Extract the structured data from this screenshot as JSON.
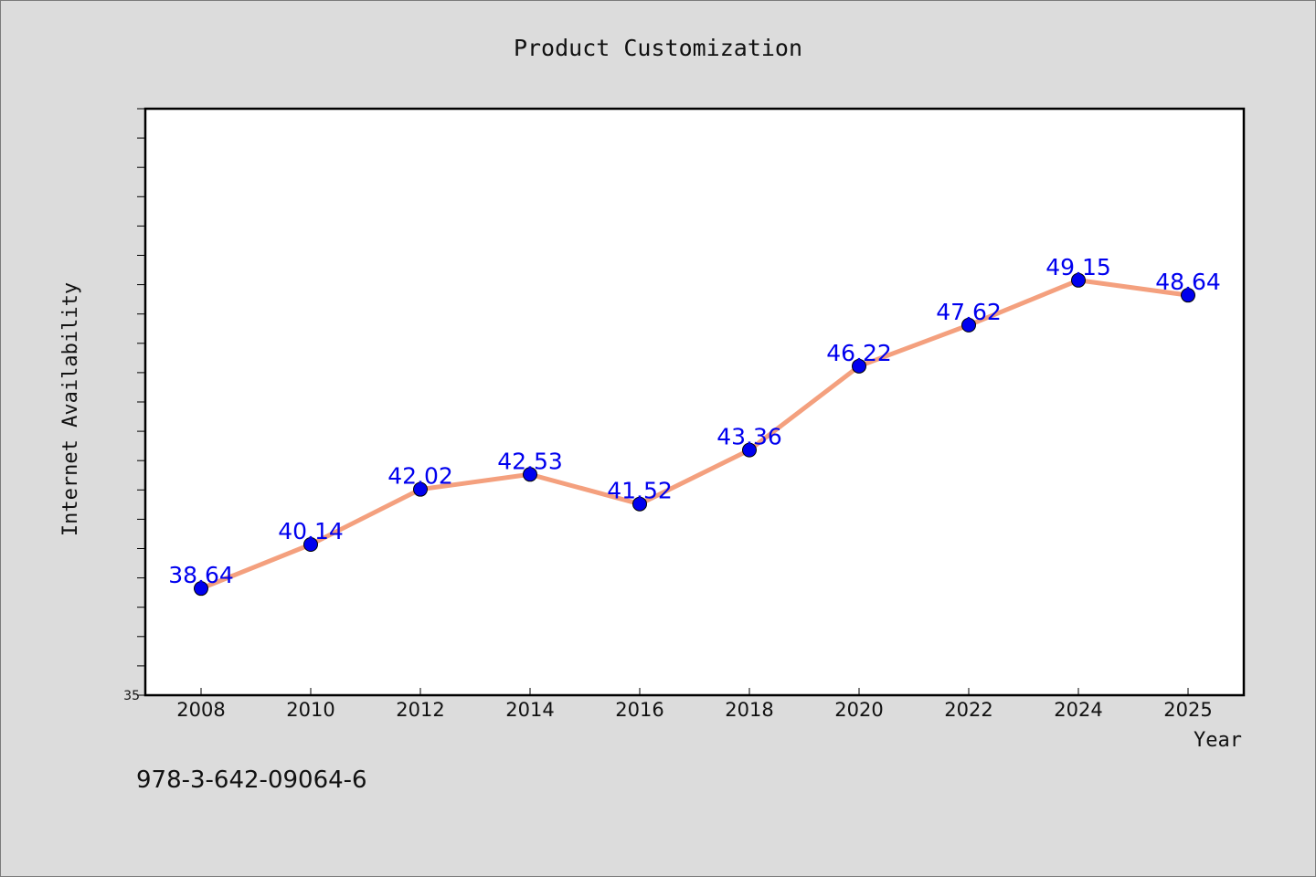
{
  "chart_data": {
    "type": "line",
    "title": "Product Customization",
    "xlabel": "Year",
    "ylabel": "Internet Availability",
    "categories": [
      "2008",
      "2010",
      "2012",
      "2014",
      "2016",
      "2018",
      "2020",
      "2022",
      "2024",
      "2025"
    ],
    "series": [
      {
        "values": [
          38.64,
          40.14,
          42.02,
          42.53,
          41.52,
          43.36,
          46.22,
          47.62,
          49.15,
          48.64
        ],
        "line_color": "#f4a07e",
        "marker_color": "#0000ee"
      }
    ],
    "ylim": [
      35,
      55
    ],
    "yticks_labeled": [
      "35"
    ],
    "grid": false,
    "legend": "none"
  },
  "footer": {
    "isbn": "978-3-642-09064-6"
  }
}
